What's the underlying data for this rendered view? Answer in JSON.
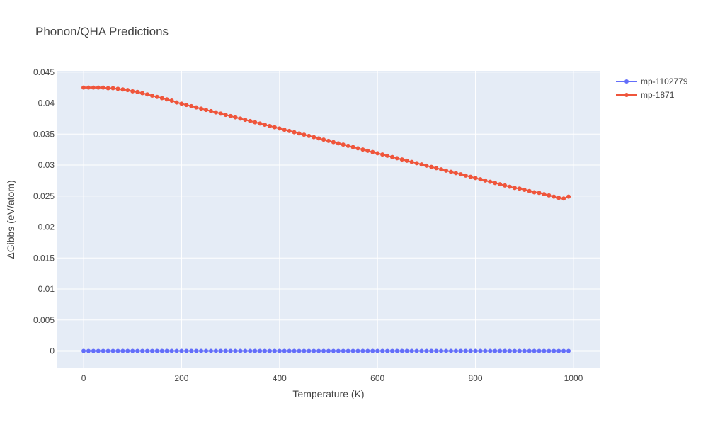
{
  "chart_data": {
    "type": "line",
    "title": "Phonon/QHA Predictions",
    "xlabel": "Temperature (K)",
    "ylabel": "ΔGibbs (eV/atom)",
    "xlim": [
      -55,
      1055
    ],
    "ylim": [
      -0.0028,
      0.0452
    ],
    "x_ticks": [
      0,
      200,
      400,
      600,
      800,
      1000
    ],
    "y_ticks": [
      0,
      0.005,
      0.01,
      0.015,
      0.02,
      0.025,
      0.03,
      0.035,
      0.04,
      0.045
    ],
    "y_tick_labels": [
      "0",
      "0.005",
      "0.01",
      "0.015",
      "0.02",
      "0.025",
      "0.03",
      "0.035",
      "0.04",
      "0.045"
    ],
    "grid": true,
    "legend_position": "top-right",
    "x": [
      0,
      10,
      20,
      30,
      40,
      50,
      60,
      70,
      80,
      90,
      100,
      110,
      120,
      130,
      140,
      150,
      160,
      170,
      180,
      190,
      200,
      210,
      220,
      230,
      240,
      250,
      260,
      270,
      280,
      290,
      300,
      310,
      320,
      330,
      340,
      350,
      360,
      370,
      380,
      390,
      400,
      410,
      420,
      430,
      440,
      450,
      460,
      470,
      480,
      490,
      500,
      510,
      520,
      530,
      540,
      550,
      560,
      570,
      580,
      590,
      600,
      610,
      620,
      630,
      640,
      650,
      660,
      670,
      680,
      690,
      700,
      710,
      720,
      730,
      740,
      750,
      760,
      770,
      780,
      790,
      800,
      810,
      820,
      830,
      840,
      850,
      860,
      870,
      880,
      890,
      900,
      910,
      920,
      930,
      940,
      950,
      960,
      970,
      980,
      990
    ],
    "series": [
      {
        "name": "mp-1102779",
        "color": "#636efa",
        "values": [
          0,
          0,
          0,
          0,
          0,
          0,
          0,
          0,
          0,
          0,
          0,
          0,
          0,
          0,
          0,
          0,
          0,
          0,
          0,
          0,
          0,
          0,
          0,
          0,
          0,
          0,
          0,
          0,
          0,
          0,
          0,
          0,
          0,
          0,
          0,
          0,
          0,
          0,
          0,
          0,
          0,
          0,
          0,
          0,
          0,
          0,
          0,
          0,
          0,
          0,
          0,
          0,
          0,
          0,
          0,
          0,
          0,
          0,
          0,
          0,
          0,
          0,
          0,
          0,
          0,
          0,
          0,
          0,
          0,
          0,
          0,
          0,
          0,
          0,
          0,
          0,
          0,
          0,
          0,
          0,
          0,
          0,
          0,
          0,
          0,
          0,
          0,
          0,
          0,
          0,
          0,
          0,
          0,
          0,
          0,
          0,
          0,
          0,
          0,
          0
        ]
      },
      {
        "name": "mp-1871",
        "color": "#ef553b",
        "values": [
          0.0425,
          0.0425,
          0.0425,
          0.0425,
          0.0425,
          0.0424,
          0.0424,
          0.0423,
          0.0422,
          0.0421,
          0.0419,
          0.0418,
          0.0416,
          0.0414,
          0.0412,
          0.041,
          0.0408,
          0.0406,
          0.0404,
          0.0401,
          0.0399,
          0.0397,
          0.0395,
          0.0393,
          0.0391,
          0.0389,
          0.0387,
          0.0385,
          0.0383,
          0.0381,
          0.0379,
          0.0377,
          0.0375,
          0.0373,
          0.0371,
          0.0369,
          0.0367,
          0.0365,
          0.0363,
          0.0361,
          0.0359,
          0.0357,
          0.0355,
          0.0353,
          0.0351,
          0.0349,
          0.0347,
          0.0345,
          0.0343,
          0.0341,
          0.0339,
          0.0337,
          0.0335,
          0.0333,
          0.0331,
          0.0329,
          0.0327,
          0.0325,
          0.0323,
          0.0321,
          0.0319,
          0.0317,
          0.0315,
          0.0313,
          0.0311,
          0.0309,
          0.0307,
          0.0305,
          0.0303,
          0.0301,
          0.0299,
          0.0297,
          0.0295,
          0.0293,
          0.0291,
          0.0289,
          0.0287,
          0.0285,
          0.0283,
          0.0281,
          0.0279,
          0.0277,
          0.0275,
          0.0273,
          0.0271,
          0.0269,
          0.0267,
          0.0265,
          0.0263,
          0.0262,
          0.026,
          0.0258,
          0.0256,
          0.0255,
          0.0253,
          0.0251,
          0.0249,
          0.0247,
          0.0246,
          0.0249
        ]
      }
    ]
  }
}
